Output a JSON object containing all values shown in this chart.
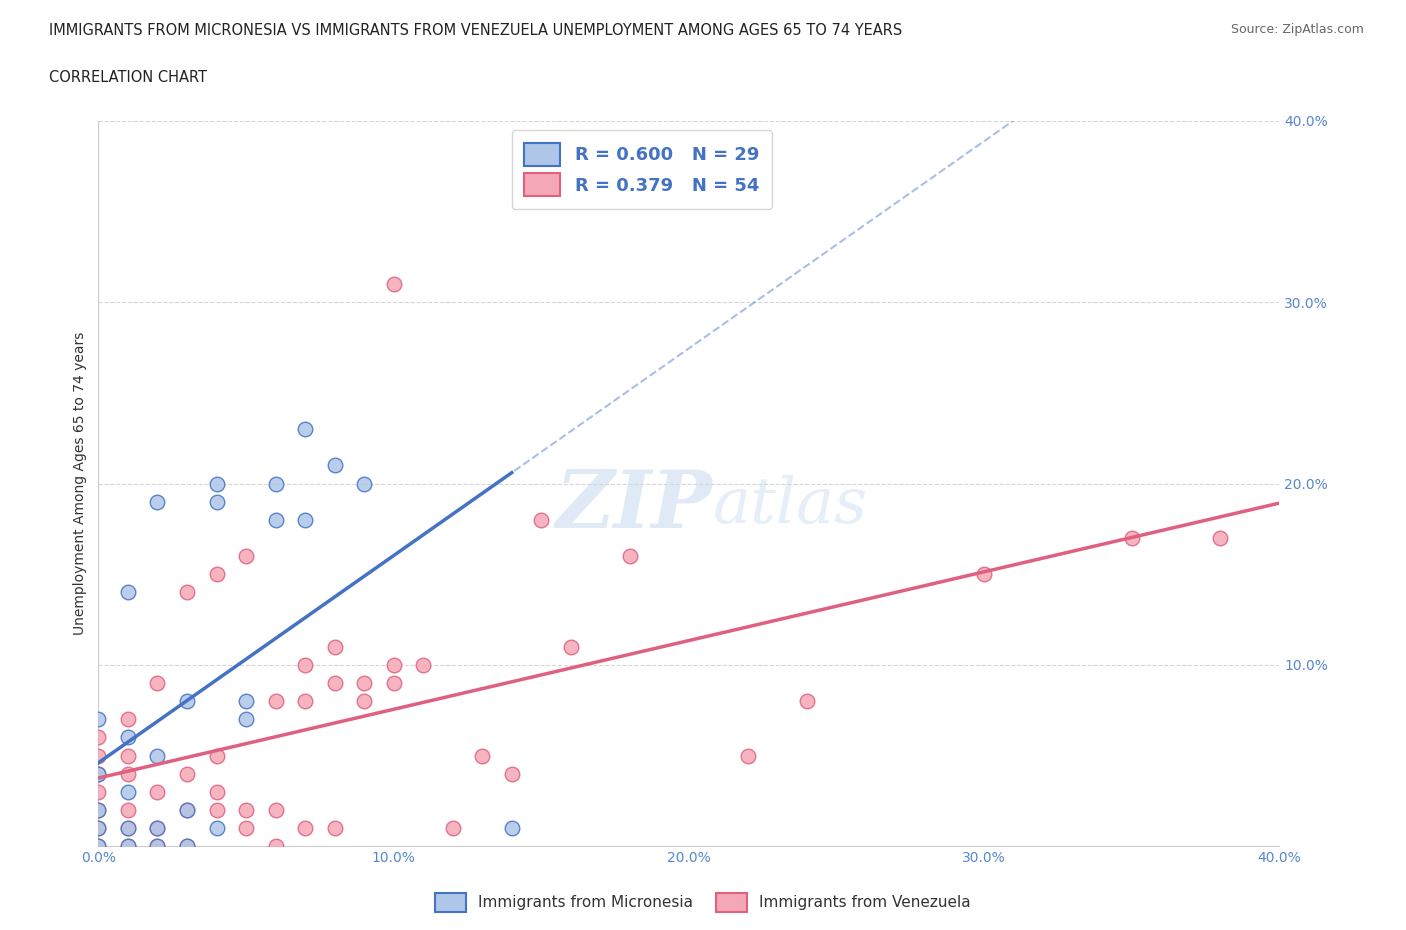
{
  "title_line1": "IMMIGRANTS FROM MICRONESIA VS IMMIGRANTS FROM VENEZUELA UNEMPLOYMENT AMONG AGES 65 TO 74 YEARS",
  "title_line2": "CORRELATION CHART",
  "source": "Source: ZipAtlas.com",
  "ylabel": "Unemployment Among Ages 65 to 74 years",
  "xlim": [
    0.0,
    0.4
  ],
  "ylim": [
    0.0,
    0.4
  ],
  "xticks": [
    0.0,
    0.1,
    0.2,
    0.3,
    0.4
  ],
  "yticks": [
    0.0,
    0.1,
    0.2,
    0.3,
    0.4
  ],
  "xtick_labels": [
    "0.0%",
    "10.0%",
    "20.0%",
    "30.0%",
    "40.0%"
  ],
  "ytick_labels": [
    "",
    "10.0%",
    "20.0%",
    "30.0%",
    "40.0%"
  ],
  "micronesia_color": "#aec6e8",
  "venezuela_color": "#f4a7b5",
  "micronesia_line_color": "#4472c4",
  "venezuela_line_color": "#e06080",
  "micronesia_R": 0.6,
  "micronesia_N": 29,
  "venezuela_R": 0.379,
  "venezuela_N": 54,
  "micronesia_scatter_x": [
    0.0,
    0.0,
    0.0,
    0.0,
    0.0,
    0.01,
    0.01,
    0.01,
    0.01,
    0.01,
    0.02,
    0.02,
    0.02,
    0.02,
    0.03,
    0.03,
    0.03,
    0.04,
    0.04,
    0.04,
    0.05,
    0.05,
    0.06,
    0.06,
    0.07,
    0.07,
    0.08,
    0.09,
    0.14
  ],
  "micronesia_scatter_y": [
    0.0,
    0.01,
    0.02,
    0.04,
    0.07,
    0.0,
    0.01,
    0.03,
    0.06,
    0.14,
    0.0,
    0.01,
    0.05,
    0.19,
    0.0,
    0.02,
    0.08,
    0.01,
    0.19,
    0.2,
    0.07,
    0.08,
    0.18,
    0.2,
    0.18,
    0.23,
    0.21,
    0.2,
    0.01
  ],
  "venezuela_scatter_x": [
    0.0,
    0.0,
    0.0,
    0.0,
    0.0,
    0.0,
    0.0,
    0.01,
    0.01,
    0.01,
    0.01,
    0.01,
    0.01,
    0.02,
    0.02,
    0.02,
    0.02,
    0.03,
    0.03,
    0.03,
    0.03,
    0.04,
    0.04,
    0.04,
    0.04,
    0.05,
    0.05,
    0.05,
    0.06,
    0.06,
    0.06,
    0.07,
    0.07,
    0.07,
    0.08,
    0.08,
    0.08,
    0.09,
    0.09,
    0.1,
    0.1,
    0.1,
    0.11,
    0.12,
    0.13,
    0.14,
    0.15,
    0.16,
    0.18,
    0.22,
    0.24,
    0.3,
    0.35,
    0.38
  ],
  "venezuela_scatter_y": [
    0.0,
    0.01,
    0.02,
    0.03,
    0.04,
    0.05,
    0.06,
    0.0,
    0.01,
    0.02,
    0.04,
    0.05,
    0.07,
    0.0,
    0.01,
    0.03,
    0.09,
    0.0,
    0.02,
    0.04,
    0.14,
    0.02,
    0.03,
    0.05,
    0.15,
    0.01,
    0.02,
    0.16,
    0.0,
    0.02,
    0.08,
    0.01,
    0.08,
    0.1,
    0.01,
    0.09,
    0.11,
    0.08,
    0.09,
    0.09,
    0.1,
    0.31,
    0.1,
    0.01,
    0.05,
    0.04,
    0.18,
    0.11,
    0.16,
    0.05,
    0.08,
    0.15,
    0.17,
    0.17
  ],
  "watermark_zip": "ZIP",
  "watermark_atlas": "atlas",
  "background_color": "#ffffff",
  "grid_color": "#cccccc",
  "tick_color": "#5588cc",
  "legend_text_color": "#4472c4"
}
